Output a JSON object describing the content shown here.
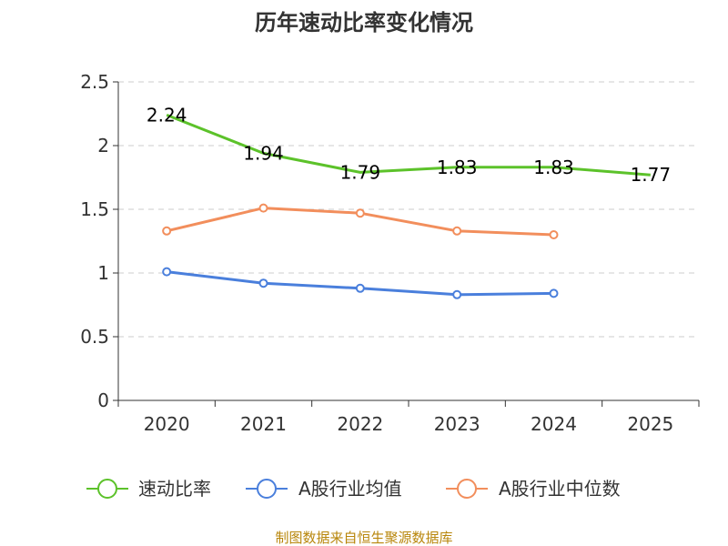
{
  "chart_data": {
    "type": "line",
    "title": "历年速动比率变化情况",
    "categories": [
      "2020",
      "2021",
      "2022",
      "2023",
      "2024",
      "2025"
    ],
    "yticks": [
      "0",
      "0.5",
      "1",
      "1.5",
      "2",
      "2.5"
    ],
    "ylim": [
      0,
      2.5
    ],
    "grid": true,
    "legend_position": "bottom",
    "series": [
      {
        "name": "速动比率",
        "color": "#5cc22a",
        "values": [
          2.24,
          1.94,
          1.79,
          1.83,
          1.83,
          1.77
        ],
        "labels": [
          "2.24",
          "1.94",
          "1.79",
          "1.83",
          "1.83",
          "1.77"
        ],
        "show_labels": true,
        "show_markers": false
      },
      {
        "name": "A股行业均值",
        "color": "#4a7fdc",
        "values": [
          1.01,
          0.92,
          0.88,
          0.83,
          0.84,
          null
        ],
        "show_labels": false,
        "show_markers": true
      },
      {
        "name": "A股行业中位数",
        "color": "#f28e5c",
        "values": [
          1.33,
          1.51,
          1.47,
          1.33,
          1.3,
          null
        ],
        "show_labels": false,
        "show_markers": true
      }
    ],
    "source": "制图数据来自恒生聚源数据库"
  }
}
